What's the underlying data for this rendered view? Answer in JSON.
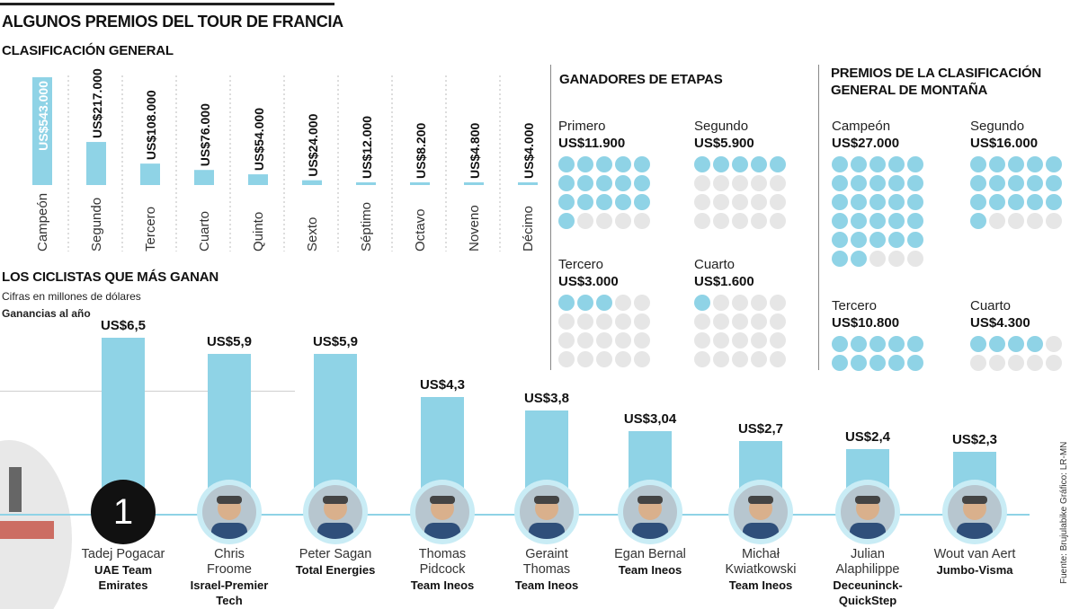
{
  "header": {
    "title": "ALGUNOS PREMIOS DEL TOUR DE FRANCIA",
    "general_title": "CLASIFICACIÓN GENERAL",
    "stages_title": "GANADORES DE ETAPAS",
    "mountain_title_line1": "PREMIOS DE LA CLASIFICACIÓN",
    "mountain_title_line2": "GENERAL DE MONTAÑA",
    "riders_title": "LOS CICLISTAS QUE MÁS GANAN",
    "riders_subtitle": "Cifras en millones de dólares",
    "riders_subtitle2": "Ganancias al año"
  },
  "source": "Fuente: Brujulabike   Gráfico: LR-MN",
  "colors": {
    "accent": "#8fd3e6",
    "empty_dot": "#e6e6e6",
    "rank_badge": "#111111"
  },
  "chart_data": [
    {
      "type": "bar",
      "title": "CLASIFICACIÓN GENERAL",
      "categories": [
        "Campeón",
        "Segundo",
        "Tercero",
        "Cuarto",
        "Quinto",
        "Sexto",
        "Séptimo",
        "Octavo",
        "Noveno",
        "Décimo"
      ],
      "values": [
        543000,
        217000,
        108000,
        76000,
        54000,
        24000,
        12000,
        8200,
        4800,
        4000
      ],
      "value_labels": [
        "US$543.000",
        "US$217.000",
        "US$108.000",
        "US$76.000",
        "US$54.000",
        "US$24.000",
        "US$12.000",
        "US$8.200",
        "US$4.800",
        "US$4.000"
      ],
      "unit": "US$"
    },
    {
      "type": "table",
      "title": "GANADORES DE ETAPAS",
      "items": [
        {
          "label": "Primero",
          "value": 11900,
          "value_label": "US$11.900",
          "dots_filled": 16,
          "dots_total": 20
        },
        {
          "label": "Segundo",
          "value": 5900,
          "value_label": "US$5.900",
          "dots_filled": 5,
          "dots_total": 20
        },
        {
          "label": "Tercero",
          "value": 3000,
          "value_label": "US$3.000",
          "dots_filled": 3,
          "dots_total": 20
        },
        {
          "label": "Cuarto",
          "value": 1600,
          "value_label": "US$1.600",
          "dots_filled": 1,
          "dots_total": 20
        }
      ]
    },
    {
      "type": "table",
      "title": "PREMIOS DE LA CLASIFICACIÓN GENERAL DE MONTAÑA",
      "items": [
        {
          "label": "Campeón",
          "value": 27000,
          "value_label": "US$27.000",
          "dots_filled": 27,
          "dots_total": 30
        },
        {
          "label": "Segundo",
          "value": 16000,
          "value_label": "US$16.000",
          "dots_filled": 16,
          "dots_total": 20
        },
        {
          "label": "Tercero",
          "value": 10800,
          "value_label": "US$10.800",
          "dots_filled": 10,
          "dots_total": 10
        },
        {
          "label": "Cuarto",
          "value": 4300,
          "value_label": "US$4.300",
          "dots_filled": 4,
          "dots_total": 10
        }
      ]
    },
    {
      "type": "bar",
      "title": "LOS CICLISTAS QUE MÁS GANAN",
      "subtitle": "Cifras en millones de dólares",
      "ylabel": "Ganancias al año",
      "categories": [
        "Tadej Pogacar",
        "Chris Froome",
        "Peter Sagan",
        "Thomas Pidcock",
        "Geraint Thomas",
        "Egan Bernal",
        "Michał Kwiatkowski",
        "Julian Alaphilippe",
        "Wout van Aert"
      ],
      "values": [
        6.5,
        5.9,
        5.9,
        4.3,
        3.8,
        3.04,
        2.7,
        2.4,
        2.3
      ],
      "value_labels": [
        "US$6,5",
        "US$5,9",
        "US$5,9",
        "US$4,3",
        "US$3,8",
        "US$3,04",
        "US$2,7",
        "US$2,4",
        "US$2,3"
      ],
      "riders": [
        {
          "name1": "Tadej Pogacar",
          "name2": "",
          "team1": "UAE Team",
          "team2": "Emirates",
          "rank": "1"
        },
        {
          "name1": "Chris",
          "name2": "Froome",
          "team1": "Israel-Premier",
          "team2": "Tech"
        },
        {
          "name1": "Peter Sagan",
          "name2": "",
          "team1": "Total Energies",
          "team2": ""
        },
        {
          "name1": "Thomas",
          "name2": "Pidcock",
          "team1": "Team Ineos",
          "team2": ""
        },
        {
          "name1": "Geraint",
          "name2": "Thomas",
          "team1": "Team Ineos",
          "team2": ""
        },
        {
          "name1": "Egan Bernal",
          "name2": "",
          "team1": "Team Ineos",
          "team2": ""
        },
        {
          "name1": "Michał",
          "name2": "Kwiatkowski",
          "team1": "Team Ineos",
          "team2": ""
        },
        {
          "name1": "Julian",
          "name2": "Alaphilippe",
          "team1": "Deceuninck-",
          "team2": "QuickStep"
        },
        {
          "name1": "Wout van Aert",
          "name2": "",
          "team1": "Jumbo-Visma",
          "team2": ""
        }
      ]
    }
  ]
}
